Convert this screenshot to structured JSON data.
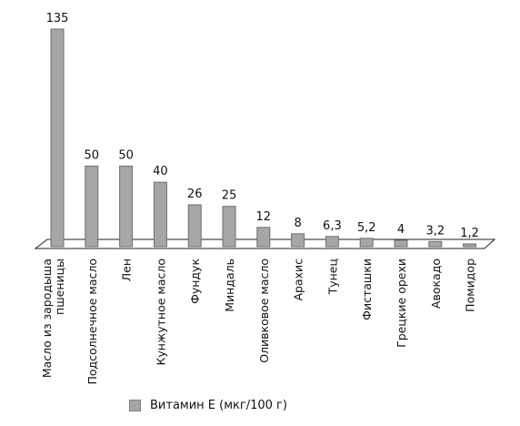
{
  "chart_data": {
    "type": "bar",
    "categories": [
      "Масло из зародыша пшеницы",
      "Подсолнечное масло",
      "Лен",
      "Кунжутное масло",
      "Фундук",
      "Миндаль",
      "Оливковое масло",
      "Арахис",
      "Тунец",
      "Фисташки",
      "Грецкие орехи",
      "Авокадо",
      "Помидор"
    ],
    "value_labels": [
      "135",
      "50",
      "50",
      "40",
      "26",
      "25",
      "12",
      "8",
      "6,3",
      "5,2",
      "4",
      "3,2",
      "1,2"
    ],
    "series": [
      {
        "name": "Витамин Е (мкг/100 г)",
        "values": [
          135,
          50,
          50,
          40,
          26,
          25,
          12,
          8,
          6.3,
          5.2,
          4,
          3.2,
          1.2
        ]
      }
    ],
    "ylim": [
      0,
      135
    ],
    "grid": false,
    "legend_position": "bottom-left",
    "colors": {
      "bar_fill": "#a6a6a6",
      "bar_stroke": "#6e6e6e",
      "floor": "#ffffff",
      "floor_stroke": "#222222"
    }
  },
  "legend": {
    "label": "Витамин Е (мкг/100 г)"
  }
}
